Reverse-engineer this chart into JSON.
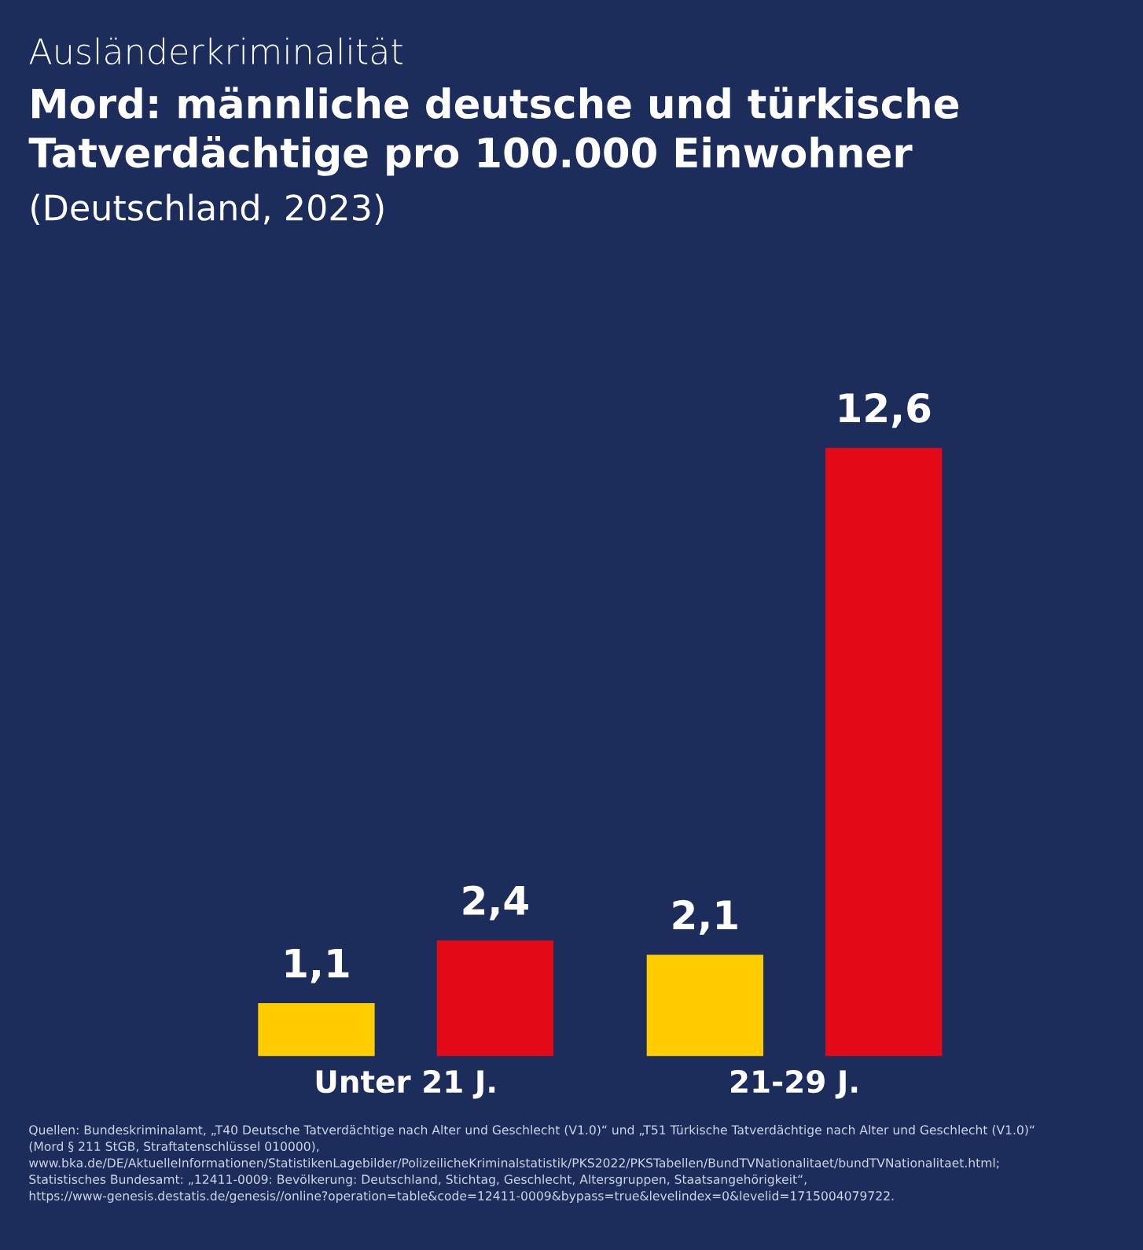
{
  "chart_data": {
    "type": "bar",
    "title": "Mord: männliche deutsche und türkische\nTatverdächtige pro 100.000 Einwohner",
    "subtitle": "(Deutschland, 2023)",
    "annotations": [
      "Ausländerkriminalität",
      "Quellen: Bundeskriminalamt, „T40 Deutsche Tatverdächtige nach Alter und Geschlecht (V1.0)“ und „T51 Türkische Tatverdächtige nach Alter und Geschlecht (V1.0)“\n(Mord § 211 StGB, Straftatenschlüssel 010000),\nwww.bka.de/DE/AktuelleInformationen/StatistikenLagebilder/PolizeilicheKriminalstatistik/PKS2022/PKSTabellen/BundTVNationalitaet/bundTVNationalitaet.html;\nStatistisches Bundesamt: „12411-0009: Bevölkerung: Deutschland, Stichtag, Geschlecht, Altersgruppen, Staatsangehörigkeit“,\nhttps://www-genesis.destatis.de/genesis//online?operation=table&code=12411-0009&bypass=true&levelindex=0&levelid=1715004079722."
    ],
    "categories": [
      "Unter 21 J.",
      "21-29 J."
    ],
    "series": [
      {
        "color": "#ffcc00",
        "values": [
          1.1,
          2.1
        ],
        "value_labels": [
          "1,1",
          "2,1"
        ]
      },
      {
        "color": "#e30a17",
        "values": [
          2.4,
          12.6
        ],
        "value_labels": [
          "2,4",
          "12,6"
        ]
      }
    ],
    "grid": false,
    "legend": false
  }
}
